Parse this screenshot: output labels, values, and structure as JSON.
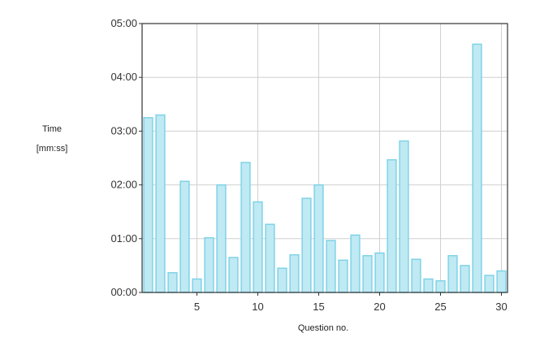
{
  "chart_data": {
    "type": "bar",
    "xlabel": "Question no.",
    "ylabel_line1": "Time",
    "ylabel_line2": "[mm:ss]",
    "categories": [
      1,
      2,
      3,
      4,
      5,
      6,
      7,
      8,
      9,
      10,
      11,
      12,
      13,
      14,
      15,
      16,
      17,
      18,
      19,
      20,
      21,
      22,
      23,
      24,
      25,
      26,
      27,
      28,
      29,
      30
    ],
    "values_seconds": [
      195,
      198,
      22,
      124,
      15,
      61,
      120,
      39,
      145,
      101,
      76,
      27,
      42,
      105,
      120,
      58,
      36,
      64,
      41,
      44,
      148,
      169,
      37,
      15,
      13,
      41,
      30,
      277,
      19,
      24
    ],
    "x_ticks": [
      5,
      10,
      15,
      20,
      25,
      30
    ],
    "y_ticks_seconds": [
      0,
      60,
      120,
      180,
      240,
      300
    ],
    "y_tick_labels": [
      "00:00",
      "01:00",
      "02:00",
      "03:00",
      "04:00",
      "05:00"
    ],
    "ylim_seconds": [
      0,
      300
    ],
    "grid": true,
    "colors": {
      "bar_fill": "#bfe9f3",
      "bar_stroke": "#7fd3e6",
      "grid": "#d0d0d0",
      "frame": "#333333"
    }
  }
}
